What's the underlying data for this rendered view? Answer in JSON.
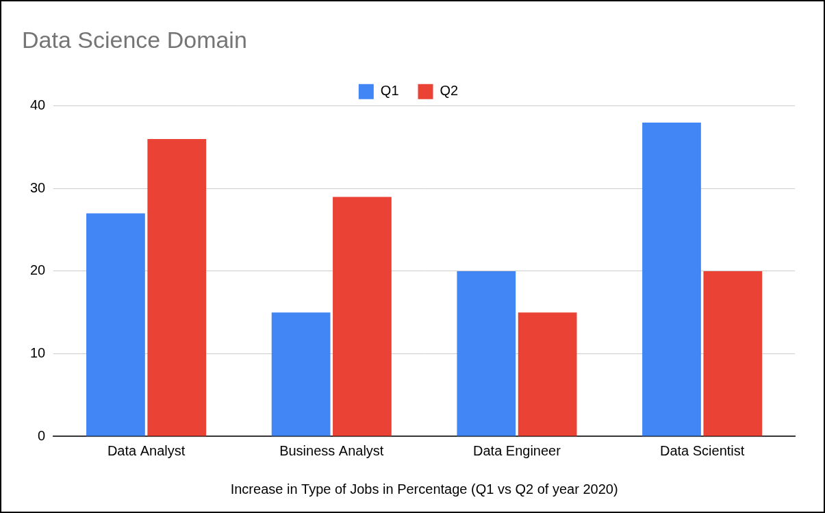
{
  "chart_data": {
    "type": "bar",
    "title": "Data Science Domain",
    "x_label": "Increase in Type of Jobs in Percentage (Q1 vs Q2 of year 2020)",
    "categories": [
      "Data Analyst",
      "Business Analyst",
      "Data Engineer",
      "Data Scientist"
    ],
    "series": [
      {
        "name": "Q1",
        "color": "#4285f4",
        "values": [
          27,
          15,
          20,
          38
        ]
      },
      {
        "name": "Q2",
        "color": "#ea4335",
        "values": [
          36,
          29,
          15,
          20
        ]
      }
    ],
    "ylim": [
      0,
      40
    ],
    "yticks": [
      0,
      10,
      20,
      30,
      40
    ],
    "grid": true,
    "legend": "top"
  }
}
